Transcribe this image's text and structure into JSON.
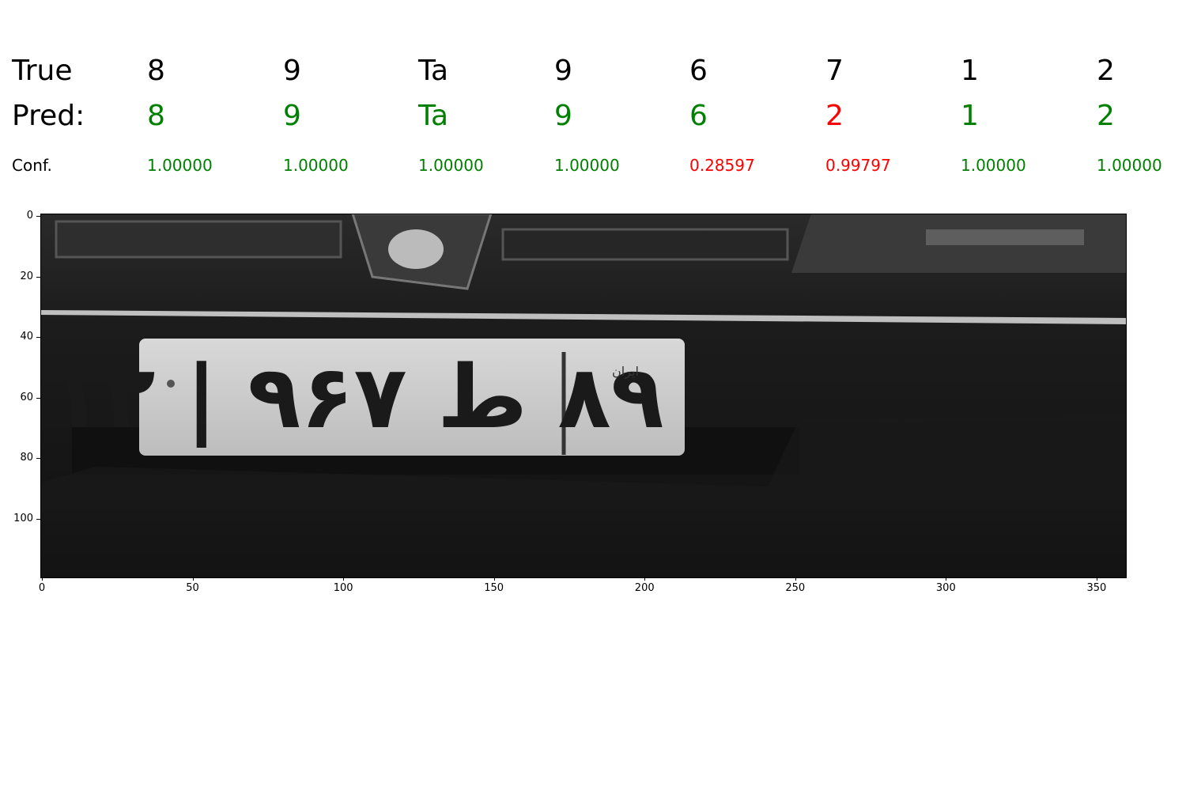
{
  "row_labels": {
    "true": "True",
    "pred": "Pred:",
    "conf": "Conf."
  },
  "characters": [
    {
      "true": "8",
      "pred": "8",
      "conf": "1.00000",
      "correct": true
    },
    {
      "true": "9",
      "pred": "9",
      "conf": "1.00000",
      "correct": true
    },
    {
      "true": "Ta",
      "pred": "Ta",
      "conf": "1.00000",
      "correct": true
    },
    {
      "true": "9",
      "pred": "9",
      "conf": "1.00000",
      "correct": true
    },
    {
      "true": "6",
      "pred": "6",
      "conf": "0.28597",
      "correct": true
    },
    {
      "true": "7",
      "pred": "2",
      "conf": "0.99797",
      "correct": false
    },
    {
      "true": "1",
      "pred": "1",
      "conf": "1.00000",
      "correct": true
    },
    {
      "true": "2",
      "pred": "2",
      "conf": "1.00000",
      "correct": true
    }
  ],
  "colors": {
    "correct": "#008000",
    "wrong": "#ff0000"
  },
  "image_axes": {
    "x_ticks": [
      "0",
      "50",
      "100",
      "150",
      "200",
      "250",
      "300",
      "350"
    ],
    "y_ticks": [
      "0",
      "20",
      "40",
      "60",
      "80",
      "100"
    ],
    "xlim": [
      0,
      360
    ],
    "ylim": [
      0,
      120
    ]
  },
  "plate_image": {
    "description_icon": "license-plate-photo",
    "plate_text": "۸۹ ط ۹۶۷ | ۱۲",
    "region_label": "ایران"
  }
}
